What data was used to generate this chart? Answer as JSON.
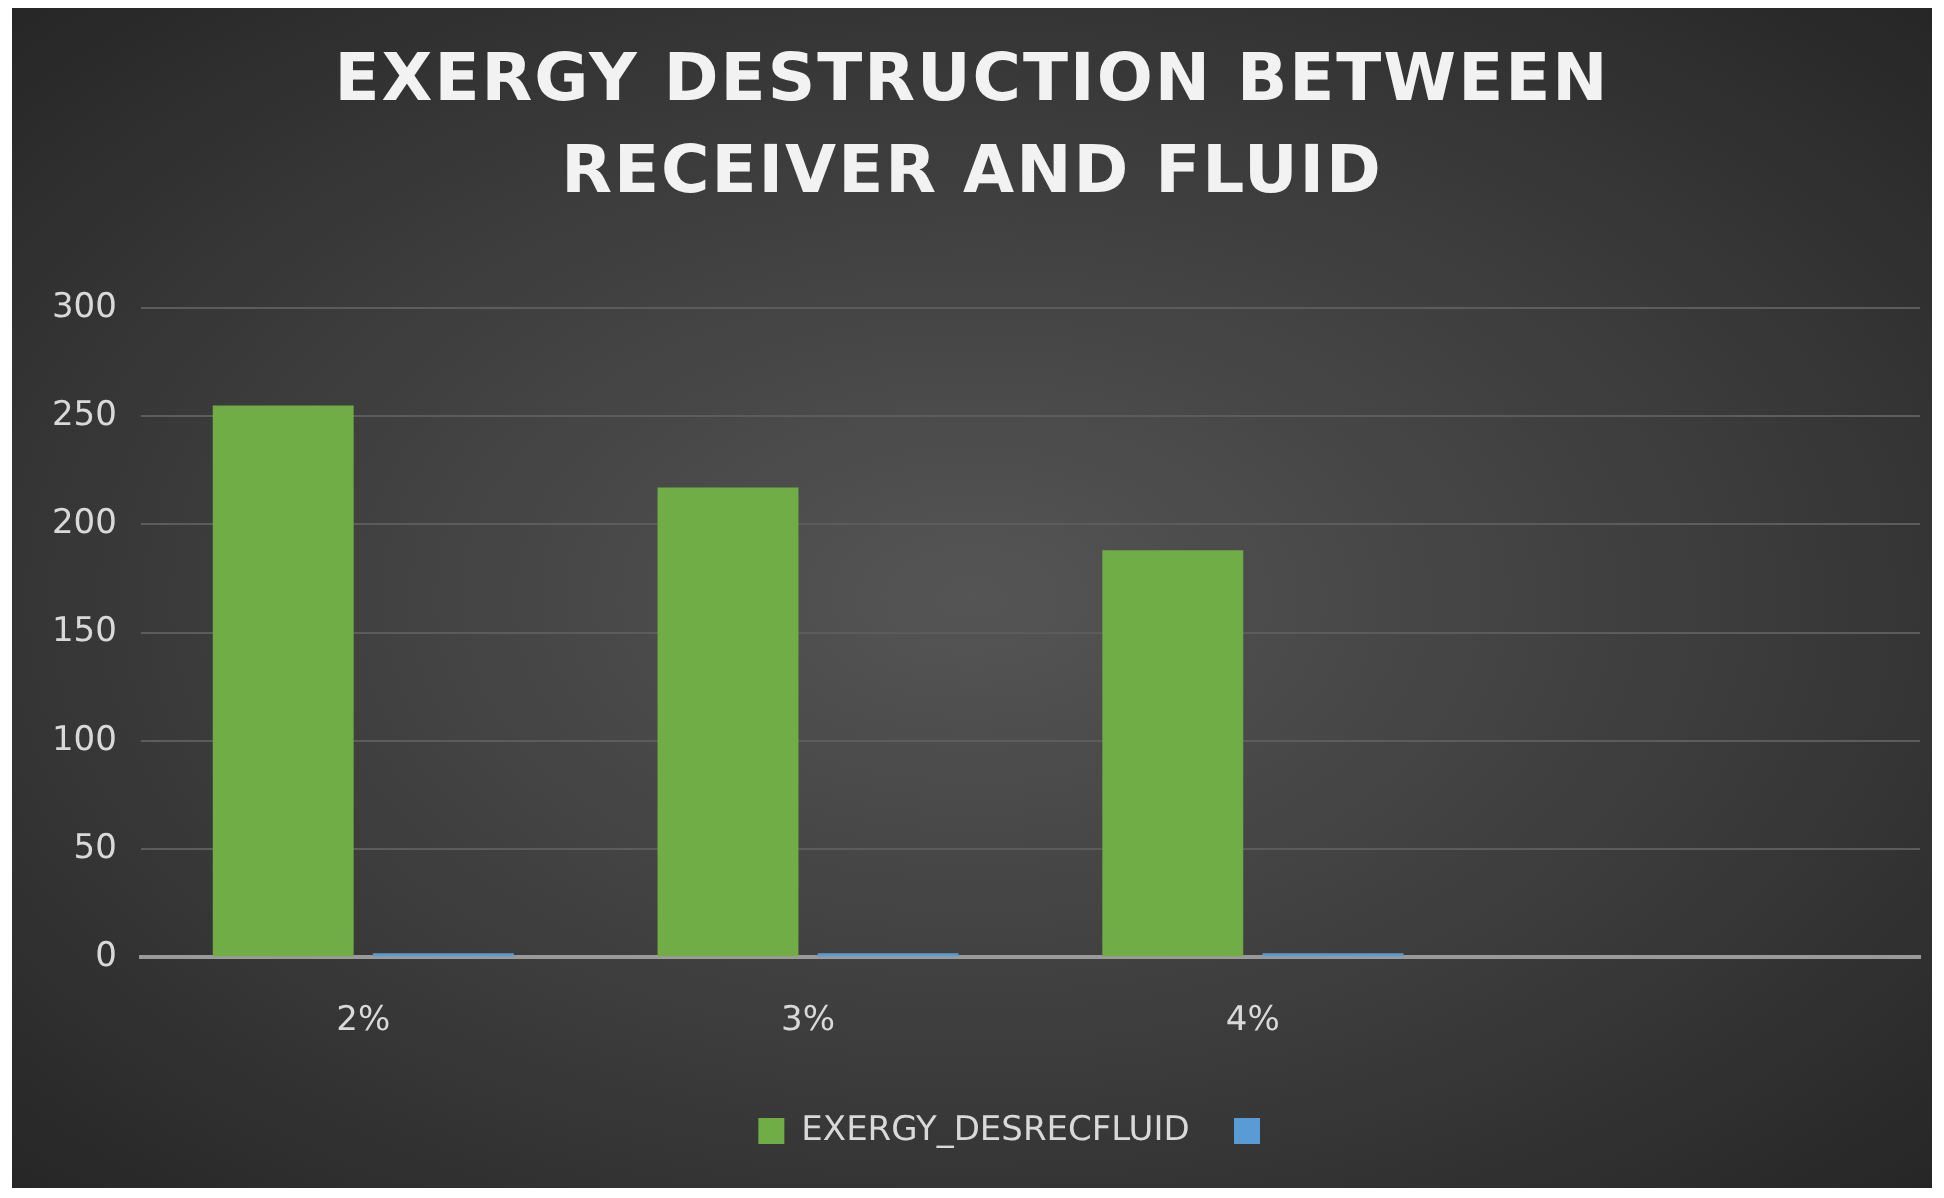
{
  "chart_data": {
    "type": "bar",
    "title": "EXERGY DESTRUCTION BETWEEN RECEIVER AND FLUID",
    "categories": [
      "2%",
      "3%",
      "4%",
      null
    ],
    "series": [
      {
        "name": "EXERGY_DESRECFLUID",
        "color": "#70ad47",
        "values": [
          255,
          217,
          188,
          null
        ]
      },
      {
        "color": "#5b9bd5",
        "values": [
          0,
          0,
          0,
          null
        ]
      }
    ],
    "ylim": [
      0,
      300
    ],
    "yticks": [
      0,
      50,
      100,
      150,
      200,
      250,
      300
    ],
    "grid": "y",
    "legend": "bottom"
  }
}
